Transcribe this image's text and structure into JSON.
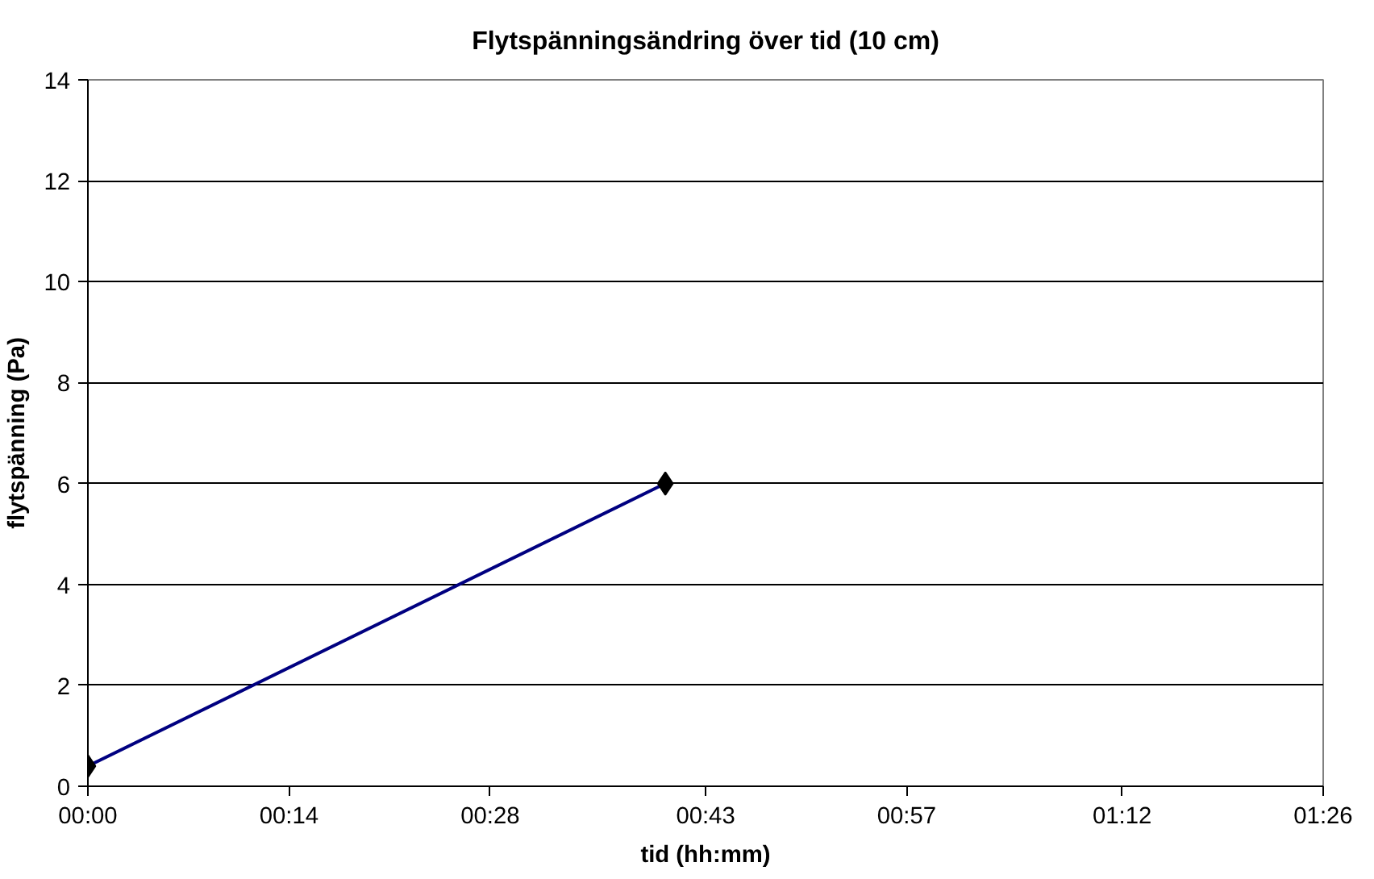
{
  "chart_data": {
    "type": "line",
    "title": "Flytspänningsändring över tid (10 cm)",
    "xlabel": "tid (hh:mm)",
    "ylabel": "flytspänning (Pa)",
    "x": [
      0,
      0.67
    ],
    "series": [
      {
        "color": "#000080",
        "values": [
          0.4,
          6
        ]
      }
    ],
    "xlim": [
      0,
      1.4333
    ],
    "xticks": [
      {
        "value": 0,
        "label": "00:00"
      },
      {
        "value": 0.2333,
        "label": "00:14"
      },
      {
        "value": 0.4667,
        "label": "00:28"
      },
      {
        "value": 0.7167,
        "label": "00:43"
      },
      {
        "value": 0.95,
        "label": "00:57"
      },
      {
        "value": 1.2,
        "label": "01:12"
      },
      {
        "value": 1.4333,
        "label": "01:26"
      }
    ],
    "ylim": [
      0,
      14
    ],
    "yticks": [
      0,
      2,
      4,
      6,
      8,
      10,
      12,
      14
    ],
    "grid": "y",
    "marker": "diamond",
    "line_style": "solid"
  }
}
